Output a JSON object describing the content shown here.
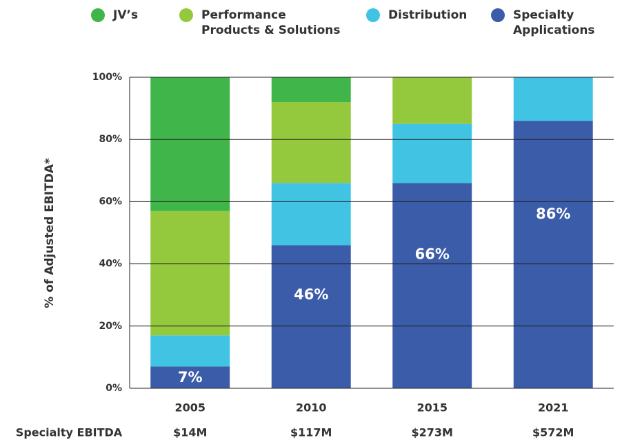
{
  "chart_data": {
    "type": "stacked_bar",
    "y_label": "% of Adjusted EBITDA*",
    "categories": [
      "2005",
      "2010",
      "2015",
      "2021"
    ],
    "series": [
      {
        "name": "JV’s",
        "color": "#3fb54a",
        "values": [
          43,
          8,
          0,
          0
        ]
      },
      {
        "name": "Performance\nProducts & Solutions",
        "color": "#94c83d",
        "values": [
          40,
          26,
          15,
          0
        ]
      },
      {
        "name": "Distribution",
        "color": "#41c4e3",
        "values": [
          10,
          20,
          19,
          14
        ]
      },
      {
        "name": "Specialty\nApplications",
        "color": "#3b5ca8",
        "values": [
          7,
          46,
          66,
          86
        ],
        "value_labels": [
          "7%",
          "46%",
          "66%",
          "86%"
        ]
      }
    ],
    "ylim": [
      0,
      100
    ],
    "yticks": [
      {
        "value": 0,
        "label": "0%"
      },
      {
        "value": 20,
        "label": "20%"
      },
      {
        "value": 40,
        "label": "40%"
      },
      {
        "value": 60,
        "label": "60%"
      },
      {
        "value": 80,
        "label": "80%"
      },
      {
        "value": 100,
        "label": "100%"
      }
    ],
    "grid": true,
    "footer": {
      "label": "Specialty EBITDA",
      "values": [
        "$14M",
        "$117M",
        "$273M",
        "$572M"
      ]
    }
  }
}
